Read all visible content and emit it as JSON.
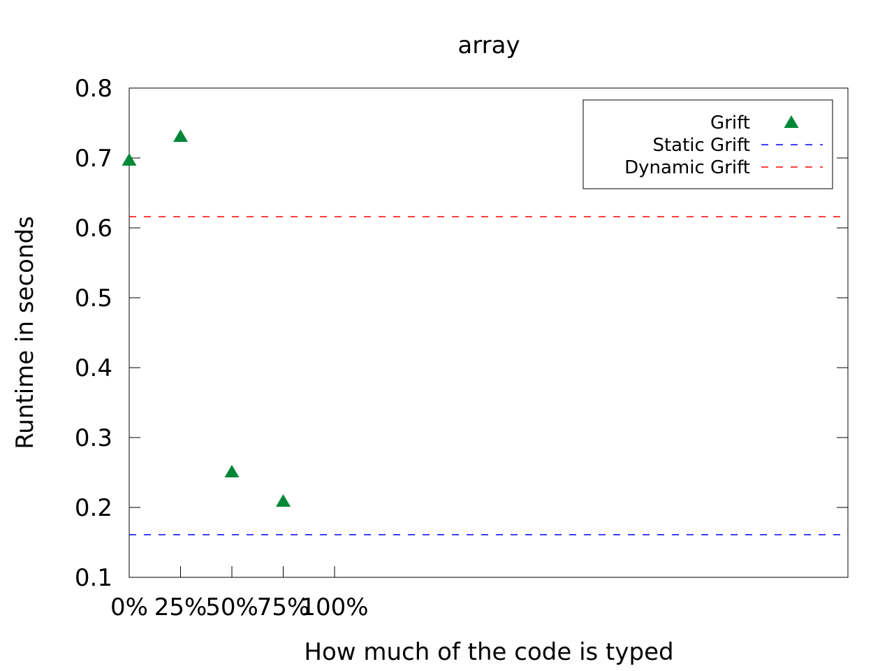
{
  "chart_data": {
    "type": "scatter",
    "title": "array",
    "xlabel": "How much of the code is typed",
    "ylabel": "Runtime in seconds",
    "ylim": [
      0.1,
      0.8
    ],
    "yticks": [
      "0.1",
      "0.2",
      "0.3",
      "0.4",
      "0.5",
      "0.6",
      "0.7",
      "0.8"
    ],
    "xticks": [
      {
        "label": "0%",
        "value": 0
      },
      {
        "label": "25%",
        "value": 25
      },
      {
        "label": "50%",
        "value": 50
      },
      {
        "label": "75%",
        "value": 75
      },
      {
        "label": "100%",
        "value": 100
      }
    ],
    "xlim": [
      0,
      350
    ],
    "grid": false,
    "legend_position": "top-right",
    "series": [
      {
        "name": "Grift",
        "kind": "points",
        "marker": "triangle",
        "color": "#008837",
        "points": [
          {
            "x": 0,
            "y": 0.697
          },
          {
            "x": 25,
            "y": 0.731
          },
          {
            "x": 50,
            "y": 0.251
          },
          {
            "x": 75,
            "y": 0.209
          }
        ]
      },
      {
        "name": "Static Grift",
        "kind": "hline",
        "color": "#0000ff",
        "y": 0.161
      },
      {
        "name": "Dynamic Grift",
        "kind": "hline",
        "color": "#ff0000",
        "y": 0.616
      }
    ]
  }
}
